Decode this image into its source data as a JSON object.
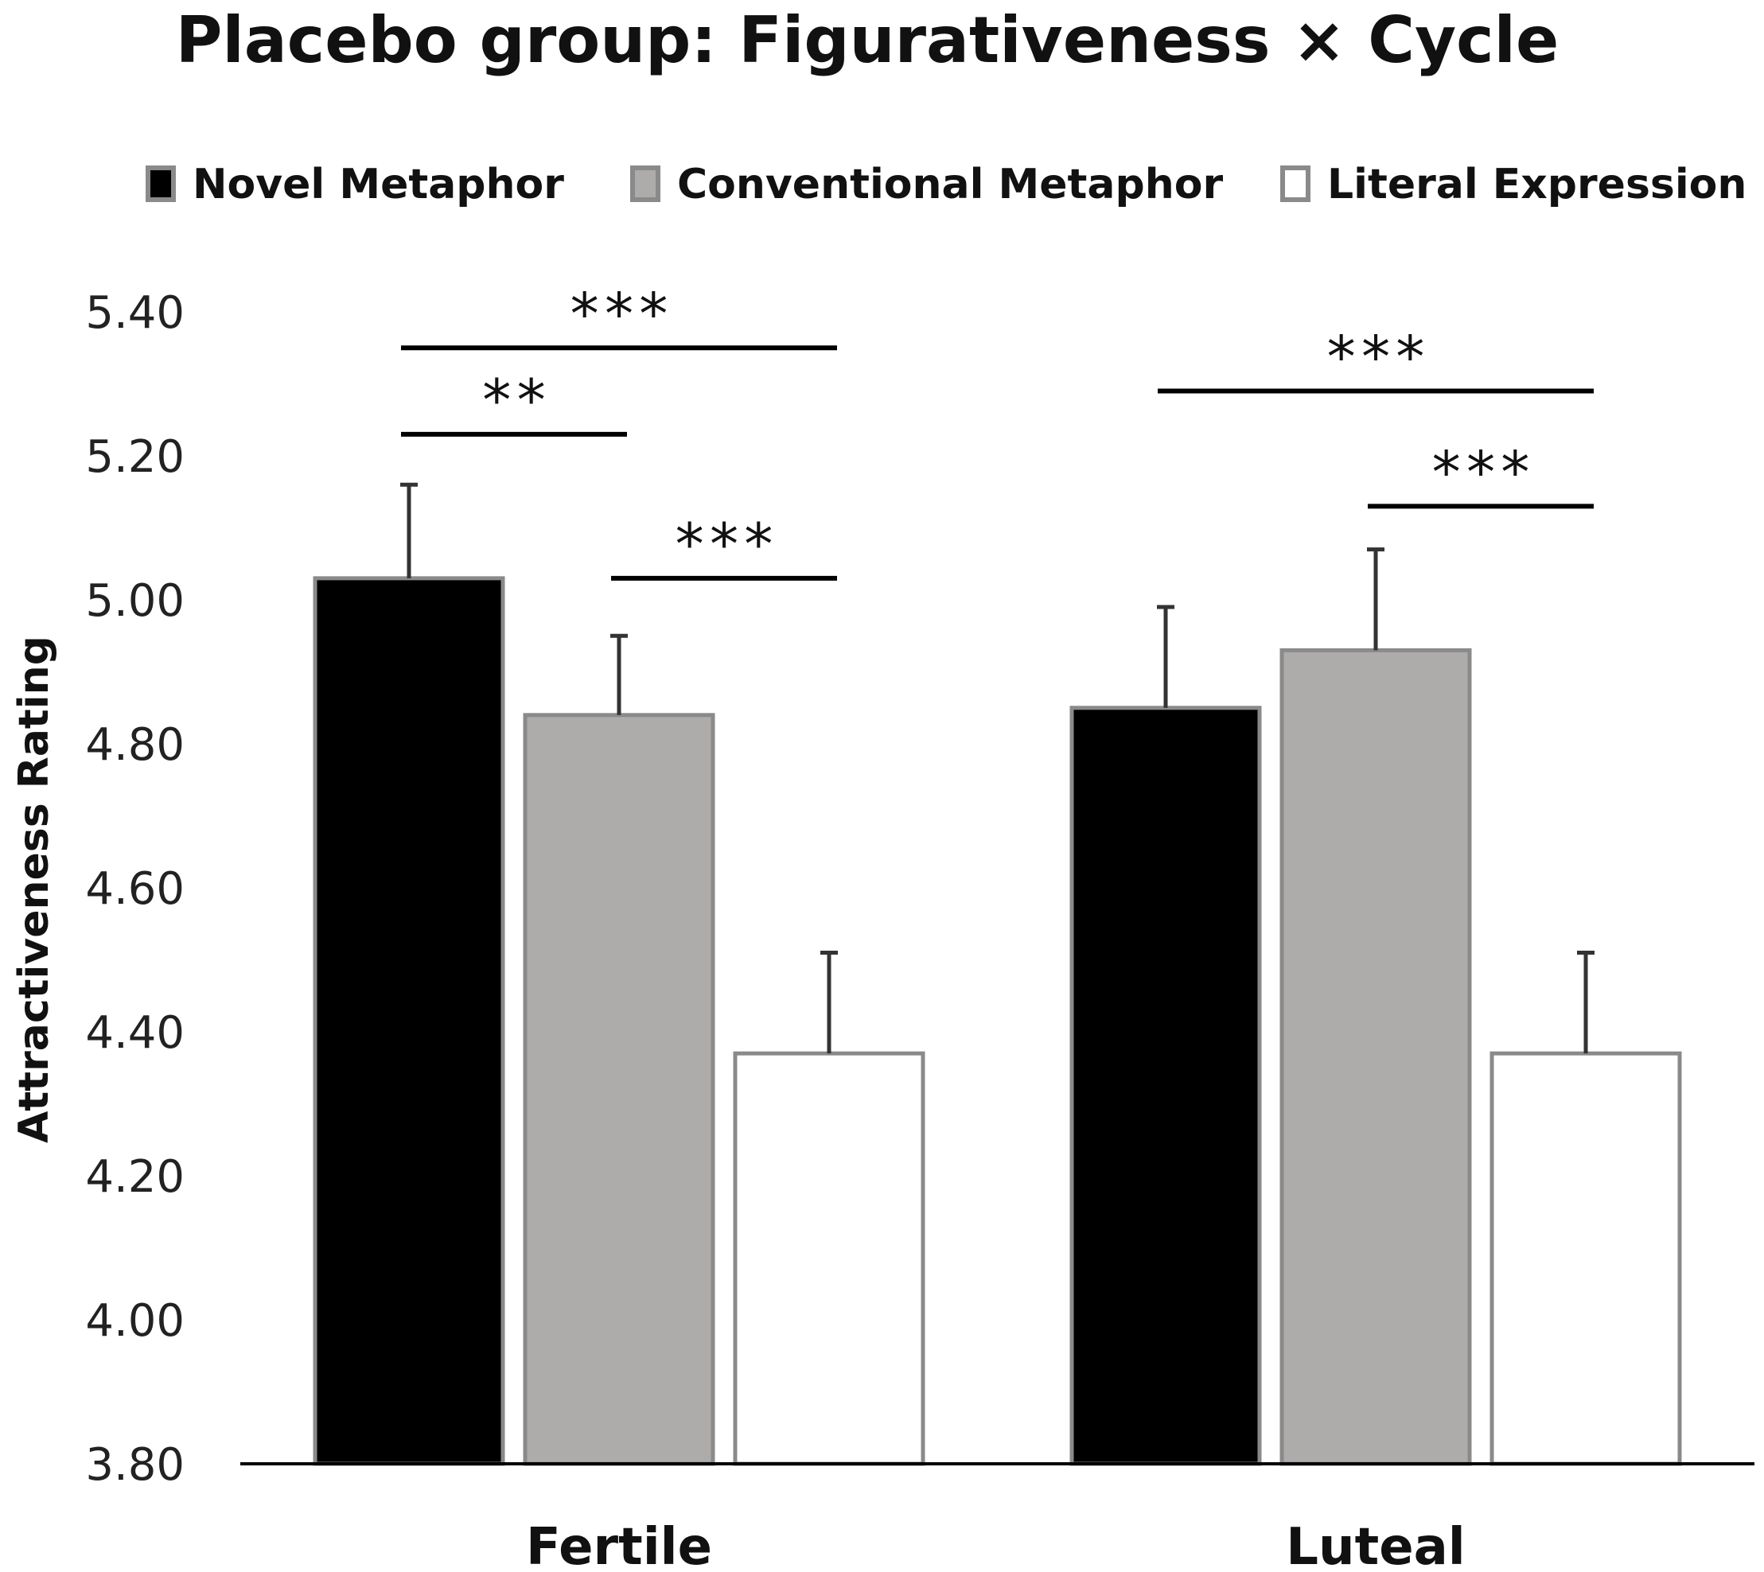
{
  "chart_data": {
    "type": "bar",
    "title": "Placebo group: Figurativeness × Cycle",
    "ylabel": "Attractiveness Rating",
    "xlabel": "",
    "ylim": [
      3.8,
      5.4
    ],
    "yticks": [
      "3.80",
      "4.00",
      "4.20",
      "4.40",
      "4.60",
      "4.80",
      "5.00",
      "5.20",
      "5.40"
    ],
    "grid": false,
    "legend_position": "top",
    "categories": [
      "Fertile",
      "Luteal"
    ],
    "series": [
      {
        "name": "Novel Metaphor",
        "color": "#000000",
        "values": [
          5.03,
          4.85
        ],
        "error": [
          0.13,
          0.14
        ]
      },
      {
        "name": "Conventional Metaphor",
        "color": "#aeabab",
        "values": [
          4.84,
          4.93
        ],
        "error": [
          0.11,
          0.14
        ]
      },
      {
        "name": "Literal Expression",
        "color": "#ffffff",
        "values": [
          4.37,
          4.37
        ],
        "error": [
          0.14,
          0.14
        ]
      }
    ],
    "significance": [
      {
        "category": 0,
        "from_series": 0,
        "to_series": 2,
        "label": "***",
        "level": 5.35
      },
      {
        "category": 0,
        "from_series": 0,
        "to_series": 1,
        "label": "**",
        "level": 5.23
      },
      {
        "category": 0,
        "from_series": 1,
        "to_series": 2,
        "label": "***",
        "level": 5.03
      },
      {
        "category": 1,
        "from_series": 0,
        "to_series": 2,
        "label": "***",
        "level": 5.29
      },
      {
        "category": 1,
        "from_series": 1,
        "to_series": 2,
        "label": "***",
        "level": 5.13
      }
    ]
  }
}
